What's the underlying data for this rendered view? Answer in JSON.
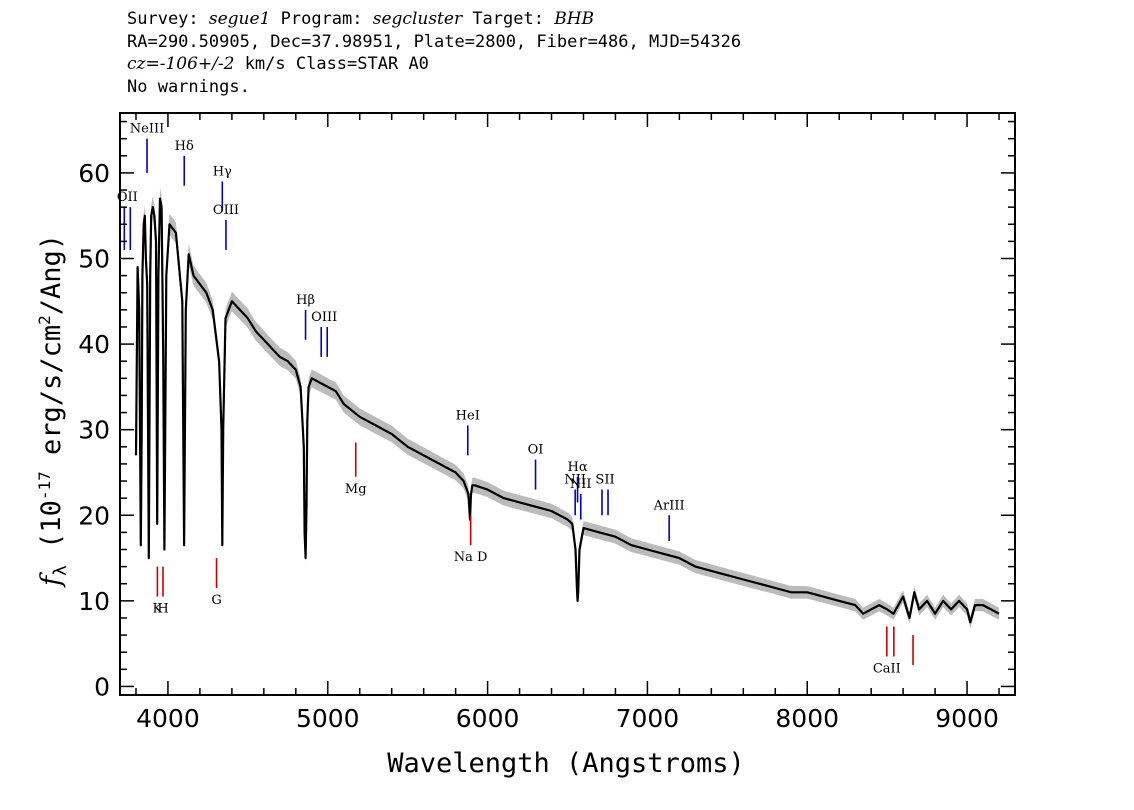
{
  "header": {
    "line1": {
      "survey_label": "Survey: ",
      "survey": "segue1",
      "program_label": " Program: ",
      "program": "segcluster",
      "target_label": " Target: ",
      "target": "BHB"
    },
    "line2": "RA=290.50905, Dec=37.98951, Plate=2800, Fiber=486, MJD=54326",
    "line3": {
      "cz": "cz=-106+/-2",
      "rest": " km/s Class=STAR A0"
    },
    "line4": "No warnings."
  },
  "chart_data": {
    "type": "line",
    "xlabel": "Wavelength (Angstroms)",
    "ylabel": "f_λ (10^-17 erg/s/cm^2/Ang)",
    "xlim": [
      3700,
      9300
    ],
    "ylim": [
      -1,
      67
    ],
    "x_ticks": [
      4000,
      5000,
      6000,
      7000,
      8000,
      9000
    ],
    "y_ticks": [
      0,
      10,
      20,
      30,
      40,
      50,
      60
    ],
    "series": [
      {
        "color": "#000000",
        "x": [
          3800,
          3810,
          3820,
          3830,
          3836,
          3840,
          3848,
          3855,
          3862,
          3870,
          3880,
          3889,
          3895,
          3905,
          3915,
          3925,
          3933,
          3940,
          3950,
          3960,
          3970,
          3978,
          3990,
          4010,
          4030,
          4050,
          4070,
          4090,
          4101,
          4112,
          4130,
          4160,
          4200,
          4240,
          4280,
          4320,
          4335,
          4340,
          4346,
          4360,
          4400,
          4450,
          4500,
          4550,
          4600,
          4650,
          4700,
          4750,
          4800,
          4830,
          4850,
          4855,
          4861,
          4867,
          4872,
          4880,
          4900,
          4950,
          5000,
          5050,
          5100,
          5200,
          5300,
          5400,
          5500,
          5600,
          5700,
          5800,
          5850,
          5880,
          5890,
          5896,
          5905,
          5920,
          6000,
          6100,
          6200,
          6300,
          6400,
          6450,
          6500,
          6530,
          6550,
          6560,
          6563,
          6567,
          6575,
          6600,
          6700,
          6800,
          6900,
          7000,
          7100,
          7200,
          7300,
          7400,
          7500,
          7600,
          7700,
          7800,
          7900,
          8000,
          8100,
          8200,
          8300,
          8350,
          8400,
          8450,
          8500,
          8540,
          8570,
          8600,
          8640,
          8670,
          8700,
          8750,
          8800,
          8850,
          8900,
          8950,
          9000,
          9020,
          9050,
          9100,
          9150,
          9200
        ],
        "y": [
          27,
          49,
          44,
          16.5,
          30,
          48,
          54,
          55,
          50,
          47,
          15,
          48,
          55,
          56,
          55,
          52,
          19,
          48,
          57,
          56,
          39,
          16,
          48,
          54,
          53.5,
          53,
          49,
          45,
          16.5,
          44,
          50.5,
          48,
          47,
          46,
          44,
          38,
          30,
          16.5,
          30,
          43,
          45,
          44,
          43,
          41.5,
          40.5,
          39.5,
          38.5,
          38,
          37,
          35,
          28,
          18,
          15,
          21,
          31,
          35,
          36,
          35.5,
          35,
          34.5,
          33,
          31.5,
          30.5,
          29.5,
          28,
          27,
          26,
          25,
          24,
          22.5,
          19.5,
          22.5,
          23.5,
          23.5,
          23,
          22,
          21.5,
          21,
          20.5,
          20,
          19.5,
          19,
          16,
          11,
          10,
          11,
          16,
          18.5,
          18,
          17.5,
          16.5,
          16,
          15.5,
          15,
          14,
          13.5,
          13,
          12.5,
          12,
          11.5,
          11,
          11,
          10.5,
          10,
          9.5,
          8.5,
          9,
          9.5,
          9,
          8.5,
          9.5,
          10.5,
          8,
          11,
          9,
          10,
          8.5,
          10,
          9,
          10,
          9,
          7.5,
          9.5,
          9.5,
          9,
          8.5
        ]
      }
    ],
    "emission_lines": [
      {
        "label": "OII",
        "wavelength": 3727,
        "y": [
          51,
          56
        ],
        "color": "#0000cc",
        "double": true
      },
      {
        "label": "NeIII",
        "wavelength": 3869,
        "y": [
          60,
          64
        ],
        "color": "#0000cc"
      },
      {
        "label": "Hδ",
        "wavelength": 4102,
        "y": [
          58.5,
          62
        ],
        "color": "#0000cc"
      },
      {
        "label": "Hγ",
        "wavelength": 4340,
        "y": [
          55.5,
          59
        ],
        "color": "#0000cc"
      },
      {
        "label": "OIII",
        "wavelength": 4363,
        "y": [
          51,
          54.5
        ],
        "color": "#0000cc"
      },
      {
        "label": "Hβ",
        "wavelength": 4861,
        "y": [
          40.5,
          44
        ],
        "color": "#0000cc"
      },
      {
        "label": "OIII",
        "wavelength": 4959,
        "y": [
          38.5,
          42
        ],
        "color": "#0000cc",
        "double": true
      },
      {
        "label": "HeI",
        "wavelength": 5876,
        "y": [
          27,
          30.5
        ],
        "color": "#0000cc"
      },
      {
        "label": "OI",
        "wavelength": 6300,
        "y": [
          23,
          26.5
        ],
        "color": "#0000cc"
      },
      {
        "label": "NII",
        "wavelength": 6548,
        "y": [
          20,
          23
        ],
        "color": "#0000cc"
      },
      {
        "label": "Hα",
        "wavelength": 6563,
        "y": [
          21.5,
          24.5
        ],
        "color": "#0000cc"
      },
      {
        "label": "NII",
        "wavelength": 6583,
        "y": [
          19.5,
          22.5
        ],
        "color": "#0000cc"
      },
      {
        "label": "SII",
        "wavelength": 6716,
        "y": [
          20,
          23
        ],
        "color": "#0000cc",
        "double": true
      },
      {
        "label": "ArIII",
        "wavelength": 7136,
        "y": [
          17,
          20
        ],
        "color": "#0000cc"
      }
    ],
    "absorption_lines": [
      {
        "label": "K",
        "wavelength": 3934,
        "y": [
          10.5,
          14
        ]
      },
      {
        "label": "H",
        "wavelength": 3969,
        "y": [
          10.5,
          14
        ]
      },
      {
        "label": "G",
        "wavelength": 4304,
        "y": [
          11.5,
          15
        ]
      },
      {
        "label": "Mg",
        "wavelength": 5175,
        "y": [
          24.5,
          28.5
        ]
      },
      {
        "label": "Na D",
        "wavelength": 5894,
        "y": [
          16.5,
          20
        ]
      },
      {
        "label": "CaII",
        "wavelength": 8498,
        "y": [
          3.5,
          7
        ]
      },
      {
        "label": "",
        "wavelength": 8542,
        "y": [
          3.5,
          7
        ]
      },
      {
        "label": "",
        "wavelength": 8662,
        "y": [
          2.5,
          6
        ]
      }
    ],
    "absorption_color": "#cc0000",
    "error_band_color": "#bbbbbb",
    "grid": false
  }
}
